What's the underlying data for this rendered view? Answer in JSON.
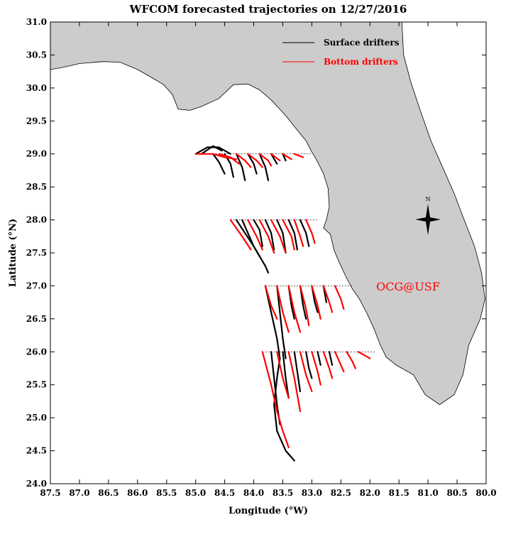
{
  "title": "WFCOM forecasted trajectories on 12/27/2016",
  "xlabel": "Longitude (°W)",
  "ylabel": "Latitude (°N)",
  "watermark": "OCG@USF",
  "compass_label": "N",
  "colors": {
    "land": "#cccccc",
    "surface": "#000000",
    "bottom": "#ff0000",
    "watermark": "#ff0000"
  },
  "legend": {
    "placement": "top-right",
    "surface_label": "Surface drifters",
    "bottom_label": "Bottom drifters"
  },
  "chart_data": {
    "type": "map",
    "xlim": [
      87.5,
      80.0
    ],
    "ylim": [
      24.0,
      31.0
    ],
    "x_ticks": [
      "87.5",
      "87.0",
      "86.5",
      "86.0",
      "85.5",
      "85.0",
      "84.5",
      "84.0",
      "83.5",
      "83.0",
      "82.5",
      "82.0",
      "81.5",
      "81.0",
      "80.5",
      "80.0"
    ],
    "y_ticks": [
      "24.0",
      "24.5",
      "25.0",
      "25.5",
      "26.0",
      "26.5",
      "27.0",
      "27.5",
      "28.0",
      "28.5",
      "29.0",
      "29.5",
      "30.0",
      "30.5",
      "31.0"
    ],
    "release_lines": [
      {
        "lat": 29.0,
        "lon_from": 85.0,
        "lon_to": 83.0
      },
      {
        "lat": 28.0,
        "lon_from": 84.4,
        "lon_to": 82.9
      },
      {
        "lat": 27.0,
        "lon_from": 83.8,
        "lon_to": 82.3
      },
      {
        "lat": 26.0,
        "lon_from": 83.8,
        "lon_to": 81.9
      }
    ],
    "coastline": [
      [
        87.5,
        30.28
      ],
      [
        87.3,
        30.31
      ],
      [
        87.0,
        30.37
      ],
      [
        86.6,
        30.4
      ],
      [
        86.3,
        30.39
      ],
      [
        86.0,
        30.28
      ],
      [
        85.8,
        30.18
      ],
      [
        85.55,
        30.05
      ],
      [
        85.4,
        29.9
      ],
      [
        85.3,
        29.68
      ],
      [
        85.1,
        29.66
      ],
      [
        84.9,
        29.72
      ],
      [
        84.6,
        29.84
      ],
      [
        84.35,
        30.05
      ],
      [
        84.1,
        30.06
      ],
      [
        83.9,
        29.97
      ],
      [
        83.7,
        29.82
      ],
      [
        83.45,
        29.58
      ],
      [
        83.25,
        29.36
      ],
      [
        83.1,
        29.2
      ],
      [
        83.0,
        29.03
      ],
      [
        82.9,
        28.88
      ],
      [
        82.8,
        28.7
      ],
      [
        82.72,
        28.48
      ],
      [
        82.7,
        28.2
      ],
      [
        82.75,
        28.0
      ],
      [
        82.8,
        27.88
      ],
      [
        82.68,
        27.78
      ],
      [
        82.62,
        27.55
      ],
      [
        82.55,
        27.4
      ],
      [
        82.42,
        27.15
      ],
      [
        82.3,
        26.95
      ],
      [
        82.18,
        26.8
      ],
      [
        82.05,
        26.58
      ],
      [
        81.93,
        26.35
      ],
      [
        81.82,
        26.1
      ],
      [
        81.72,
        25.92
      ],
      [
        81.55,
        25.8
      ],
      [
        81.25,
        25.65
      ],
      [
        81.05,
        25.35
      ],
      [
        80.8,
        25.2
      ],
      [
        80.55,
        25.35
      ],
      [
        80.4,
        25.65
      ],
      [
        80.3,
        26.1
      ],
      [
        80.1,
        26.5
      ],
      [
        80.02,
        26.8
      ],
      [
        80.08,
        27.2
      ],
      [
        80.2,
        27.6
      ],
      [
        80.4,
        28.05
      ],
      [
        80.55,
        28.4
      ],
      [
        80.75,
        28.8
      ],
      [
        80.95,
        29.2
      ],
      [
        81.15,
        29.7
      ],
      [
        81.3,
        30.1
      ],
      [
        81.42,
        30.5
      ],
      [
        81.45,
        31.0
      ],
      [
        80.0,
        31.0
      ],
      [
        87.5,
        31.0
      ]
    ],
    "series": [
      {
        "name": "Surface drifters",
        "tracks": [
          [
            [
              85.0,
              29.0
            ],
            [
              84.8,
              29.1
            ],
            [
              84.6,
              29.1
            ],
            [
              84.4,
              29.0
            ]
          ],
          [
            [
              84.9,
              29.0
            ],
            [
              84.7,
              29.12
            ],
            [
              84.55,
              29.05
            ]
          ],
          [
            [
              84.7,
              29.0
            ],
            [
              84.6,
              28.88
            ],
            [
              84.5,
              28.7
            ]
          ],
          [
            [
              84.5,
              29.0
            ],
            [
              84.4,
              28.85
            ],
            [
              84.35,
              28.65
            ]
          ],
          [
            [
              84.3,
              29.0
            ],
            [
              84.2,
              28.8
            ],
            [
              84.15,
              28.6
            ]
          ],
          [
            [
              84.1,
              29.0
            ],
            [
              84.0,
              28.85
            ],
            [
              83.95,
              28.7
            ]
          ],
          [
            [
              83.9,
              29.0
            ],
            [
              83.8,
              28.8
            ],
            [
              83.75,
              28.6
            ]
          ],
          [
            [
              83.7,
              29.0
            ],
            [
              83.6,
              28.85
            ]
          ],
          [
            [
              83.5,
              29.0
            ],
            [
              83.45,
              28.9
            ]
          ],
          [
            [
              84.2,
              28.0
            ],
            [
              84.1,
              27.8
            ],
            [
              84.0,
              27.6
            ],
            [
              83.9,
              27.45
            ]
          ],
          [
            [
              84.0,
              28.0
            ],
            [
              83.9,
              27.85
            ],
            [
              83.85,
              27.6
            ]
          ],
          [
            [
              83.8,
              28.0
            ],
            [
              83.7,
              27.8
            ],
            [
              83.65,
              27.55
            ]
          ],
          [
            [
              83.6,
              28.0
            ],
            [
              83.5,
              27.8
            ],
            [
              83.45,
              27.5
            ]
          ],
          [
            [
              83.4,
              28.0
            ],
            [
              83.3,
              27.8
            ],
            [
              83.25,
              27.55
            ]
          ],
          [
            [
              83.2,
              28.0
            ],
            [
              83.1,
              27.8
            ],
            [
              83.05,
              27.6
            ]
          ],
          [
            [
              84.3,
              28.0
            ],
            [
              84.0,
              27.6
            ],
            [
              83.8,
              27.3
            ],
            [
              83.75,
              27.2
            ]
          ],
          [
            [
              83.8,
              27.0
            ],
            [
              83.7,
              26.6
            ],
            [
              83.6,
              26.2
            ],
            [
              83.55,
              25.9
            ],
            [
              83.6,
              25.6
            ],
            [
              83.65,
              25.2
            ],
            [
              83.6,
              24.8
            ],
            [
              83.45,
              24.5
            ],
            [
              83.3,
              24.35
            ]
          ],
          [
            [
              83.6,
              27.0
            ],
            [
              83.55,
              26.6
            ],
            [
              83.5,
              26.2
            ],
            [
              83.45,
              25.9
            ]
          ],
          [
            [
              83.4,
              27.0
            ],
            [
              83.35,
              26.7
            ],
            [
              83.3,
              26.5
            ]
          ],
          [
            [
              83.2,
              27.0
            ],
            [
              83.15,
              26.7
            ],
            [
              83.1,
              26.5
            ]
          ],
          [
            [
              83.0,
              27.0
            ],
            [
              82.95,
              26.75
            ],
            [
              82.9,
              26.6
            ]
          ],
          [
            [
              82.8,
              27.0
            ],
            [
              82.75,
              26.75
            ]
          ],
          [
            [
              83.7,
              26.0
            ],
            [
              83.65,
              25.6
            ],
            [
              83.6,
              25.2
            ],
            [
              83.55,
              24.9
            ]
          ],
          [
            [
              83.5,
              26.0
            ],
            [
              83.45,
              25.6
            ],
            [
              83.4,
              25.3
            ]
          ],
          [
            [
              83.3,
              26.0
            ],
            [
              83.25,
              25.7
            ],
            [
              83.2,
              25.4
            ]
          ],
          [
            [
              83.1,
              26.0
            ],
            [
              83.05,
              25.75
            ],
            [
              83.0,
              25.6
            ]
          ],
          [
            [
              82.9,
              26.0
            ],
            [
              82.85,
              25.8
            ]
          ],
          [
            [
              82.7,
              26.0
            ],
            [
              82.65,
              25.8
            ]
          ]
        ]
      },
      {
        "name": "Bottom drifters",
        "tracks": [
          [
            [
              85.0,
              29.0
            ],
            [
              84.7,
              29.0
            ],
            [
              84.5,
              28.95
            ],
            [
              84.3,
              28.92
            ]
          ],
          [
            [
              84.6,
              29.0
            ],
            [
              84.4,
              28.95
            ],
            [
              84.25,
              28.85
            ]
          ],
          [
            [
              84.3,
              29.0
            ],
            [
              84.15,
              28.9
            ],
            [
              84.05,
              28.8
            ]
          ],
          [
            [
              84.1,
              29.0
            ],
            [
              83.95,
              28.9
            ],
            [
              83.85,
              28.8
            ]
          ],
          [
            [
              83.9,
              29.0
            ],
            [
              83.75,
              28.9
            ],
            [
              83.7,
              28.82
            ]
          ],
          [
            [
              83.7,
              29.0
            ],
            [
              83.55,
              28.9
            ]
          ],
          [
            [
              83.5,
              29.0
            ],
            [
              83.35,
              28.92
            ]
          ],
          [
            [
              83.3,
              29.0
            ],
            [
              83.15,
              28.95
            ]
          ],
          [
            [
              84.4,
              28.0
            ],
            [
              84.2,
              27.75
            ],
            [
              84.05,
              27.55
            ]
          ],
          [
            [
              84.1,
              28.0
            ],
            [
              83.95,
              27.75
            ],
            [
              83.85,
              27.55
            ]
          ],
          [
            [
              83.9,
              28.0
            ],
            [
              83.75,
              27.75
            ],
            [
              83.65,
              27.5
            ]
          ],
          [
            [
              83.7,
              28.0
            ],
            [
              83.55,
              27.75
            ],
            [
              83.45,
              27.5
            ]
          ],
          [
            [
              83.5,
              28.0
            ],
            [
              83.35,
              27.75
            ],
            [
              83.3,
              27.55
            ]
          ],
          [
            [
              83.3,
              28.0
            ],
            [
              83.2,
              27.75
            ],
            [
              83.15,
              27.6
            ]
          ],
          [
            [
              83.1,
              28.0
            ],
            [
              83.0,
              27.8
            ],
            [
              82.95,
              27.65
            ]
          ],
          [
            [
              83.8,
              27.0
            ],
            [
              83.7,
              26.7
            ],
            [
              83.6,
              26.5
            ]
          ],
          [
            [
              83.6,
              27.0
            ],
            [
              83.5,
              26.6
            ],
            [
              83.4,
              26.3
            ]
          ],
          [
            [
              83.4,
              27.0
            ],
            [
              83.3,
              26.6
            ],
            [
              83.2,
              26.3
            ]
          ],
          [
            [
              83.2,
              27.0
            ],
            [
              83.1,
              26.65
            ],
            [
              83.05,
              26.4
            ]
          ],
          [
            [
              83.0,
              27.0
            ],
            [
              82.9,
              26.7
            ],
            [
              82.85,
              26.5
            ]
          ],
          [
            [
              82.8,
              27.0
            ],
            [
              82.7,
              26.75
            ],
            [
              82.65,
              26.6
            ]
          ],
          [
            [
              82.6,
              27.0
            ],
            [
              82.5,
              26.8
            ],
            [
              82.45,
              26.65
            ]
          ],
          [
            [
              83.85,
              26.0
            ],
            [
              83.7,
              25.5
            ],
            [
              83.6,
              25.1
            ],
            [
              83.5,
              24.8
            ],
            [
              83.4,
              24.55
            ]
          ],
          [
            [
              83.6,
              26.0
            ],
            [
              83.5,
              25.6
            ],
            [
              83.4,
              25.3
            ]
          ],
          [
            [
              83.4,
              26.0
            ],
            [
              83.3,
              25.6
            ],
            [
              83.2,
              25.1
            ]
          ],
          [
            [
              83.2,
              26.0
            ],
            [
              83.1,
              25.65
            ],
            [
              83.0,
              25.4
            ]
          ],
          [
            [
              83.0,
              26.0
            ],
            [
              82.9,
              25.7
            ],
            [
              82.85,
              25.5
            ]
          ],
          [
            [
              82.8,
              26.0
            ],
            [
              82.7,
              25.75
            ],
            [
              82.65,
              25.6
            ]
          ],
          [
            [
              82.6,
              26.0
            ],
            [
              82.5,
              25.8
            ],
            [
              82.45,
              25.7
            ]
          ],
          [
            [
              82.4,
              26.0
            ],
            [
              82.3,
              25.85
            ],
            [
              82.25,
              25.75
            ]
          ],
          [
            [
              82.2,
              26.0
            ],
            [
              82.1,
              25.95
            ],
            [
              82.0,
              25.9
            ]
          ]
        ]
      }
    ]
  }
}
